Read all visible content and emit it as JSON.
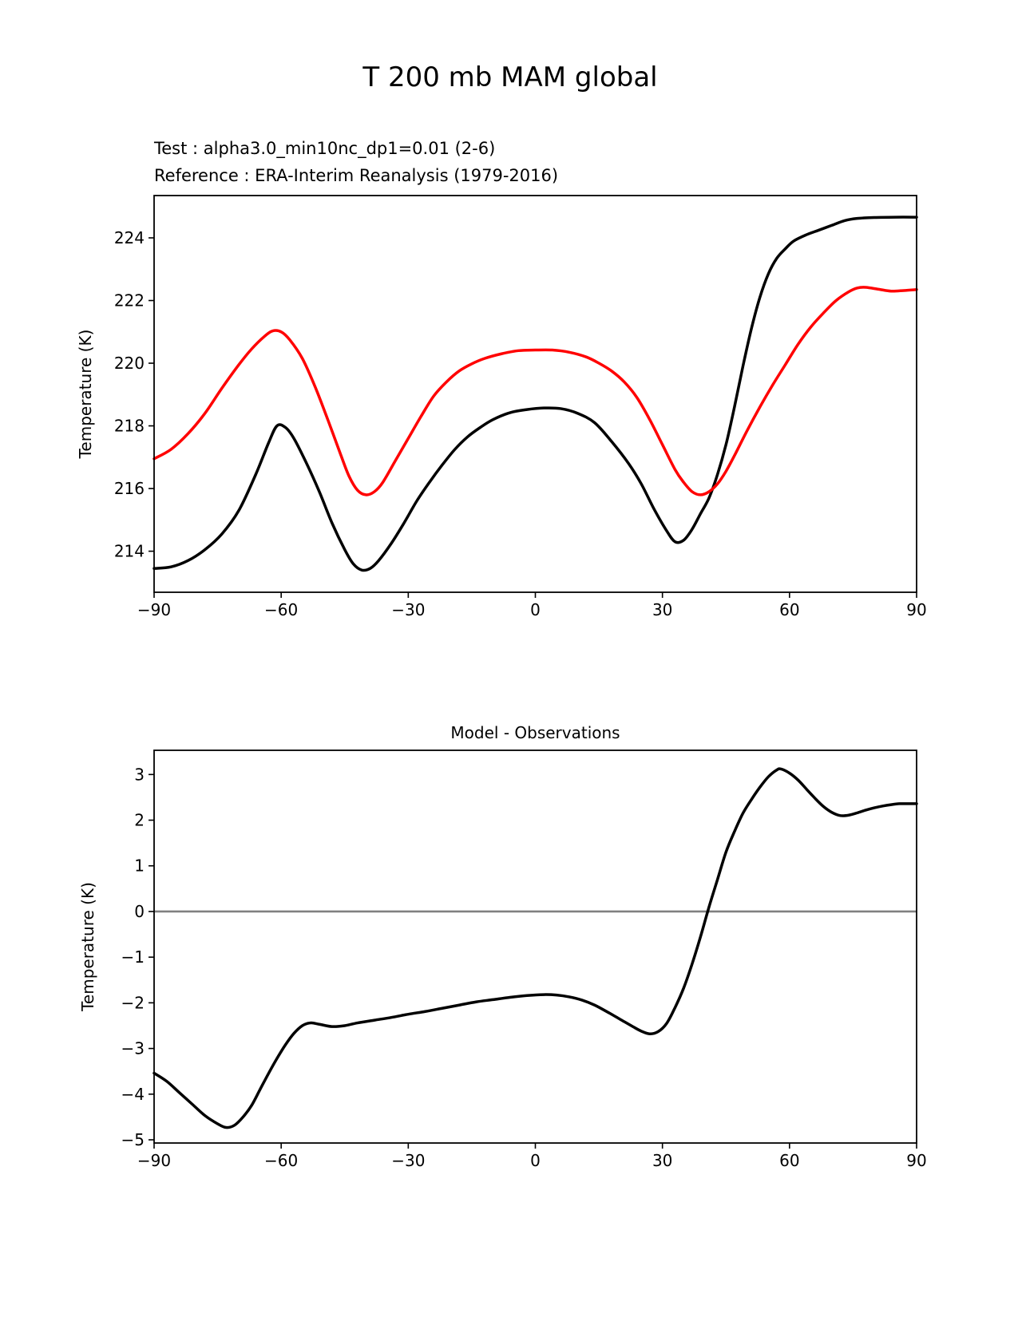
{
  "figure": {
    "background": "#ffffff",
    "title": "T 200 mb MAM global",
    "legend": {
      "test_label": "Test : alpha3.0_min10nc_dp1=0.01 (2-6)",
      "test_color": "#000000",
      "reference_label": "Reference : ERA-Interim Reanalysis (1979-2016)",
      "reference_color": "#ff0000"
    }
  },
  "chart_data": [
    {
      "type": "line",
      "title": "",
      "xlabel": "",
      "ylabel": "Temperature (K)",
      "x_units": "latitude_degrees",
      "xlim": [
        -90,
        90
      ],
      "ylim": [
        212.69,
        225.35
      ],
      "xticks": [
        -90,
        -60,
        -30,
        0,
        30,
        60,
        90
      ],
      "xtick_labels": [
        "−90",
        "−60",
        "−30",
        "0",
        "30",
        "60",
        "90"
      ],
      "yticks": [
        214,
        216,
        218,
        220,
        222,
        224
      ],
      "ytick_labels": [
        "214",
        "216",
        "218",
        "220",
        "222",
        "224"
      ],
      "grid": false,
      "frame_color": "#000000",
      "series": [
        {
          "name": "Test : alpha3.0_min10nc_dp1=0.01 (2-6)",
          "color": "#000000",
          "linewidth": 3.5,
          "points": [
            [
              -90,
              213.45
            ],
            [
              -86,
              213.5
            ],
            [
              -82,
              213.7
            ],
            [
              -78,
              214.05
            ],
            [
              -74,
              214.55
            ],
            [
              -70,
              215.3
            ],
            [
              -66,
              216.45
            ],
            [
              -63,
              217.45
            ],
            [
              -61,
              218.0
            ],
            [
              -59,
              217.95
            ],
            [
              -57,
              217.6
            ],
            [
              -54,
              216.8
            ],
            [
              -51,
              215.9
            ],
            [
              -48,
              214.9
            ],
            [
              -45,
              214.05
            ],
            [
              -43,
              213.6
            ],
            [
              -41,
              213.4
            ],
            [
              -39,
              213.45
            ],
            [
              -37,
              213.7
            ],
            [
              -34,
              214.25
            ],
            [
              -31,
              214.9
            ],
            [
              -28,
              215.6
            ],
            [
              -25,
              216.2
            ],
            [
              -22,
              216.75
            ],
            [
              -19,
              217.25
            ],
            [
              -16,
              217.65
            ],
            [
              -13,
              217.95
            ],
            [
              -10,
              218.2
            ],
            [
              -6,
              218.42
            ],
            [
              -2,
              218.52
            ],
            [
              2,
              218.57
            ],
            [
              6,
              218.55
            ],
            [
              10,
              218.4
            ],
            [
              14,
              218.1
            ],
            [
              18,
              217.5
            ],
            [
              22,
              216.8
            ],
            [
              25,
              216.15
            ],
            [
              28,
              215.35
            ],
            [
              31,
              214.65
            ],
            [
              33,
              214.3
            ],
            [
              35,
              214.35
            ],
            [
              37,
              214.7
            ],
            [
              39,
              215.2
            ],
            [
              41,
              215.7
            ],
            [
              43,
              216.45
            ],
            [
              45,
              217.4
            ],
            [
              47,
              218.6
            ],
            [
              49,
              219.9
            ],
            [
              51,
              221.1
            ],
            [
              53,
              222.1
            ],
            [
              55,
              222.85
            ],
            [
              57,
              223.35
            ],
            [
              59,
              223.65
            ],
            [
              61,
              223.9
            ],
            [
              64,
              224.1
            ],
            [
              67,
              224.25
            ],
            [
              70,
              224.4
            ],
            [
              73,
              224.55
            ],
            [
              76,
              224.62
            ],
            [
              80,
              224.65
            ],
            [
              85,
              224.66
            ],
            [
              90,
              224.66
            ]
          ]
        },
        {
          "name": "Reference : ERA-Interim Reanalysis (1979-2016)",
          "color": "#ff0000",
          "linewidth": 3.5,
          "points": [
            [
              -90,
              216.95
            ],
            [
              -86,
              217.25
            ],
            [
              -82,
              217.75
            ],
            [
              -78,
              218.4
            ],
            [
              -74,
              219.2
            ],
            [
              -70,
              219.95
            ],
            [
              -67,
              220.45
            ],
            [
              -64,
              220.85
            ],
            [
              -62,
              221.03
            ],
            [
              -60,
              221.0
            ],
            [
              -58,
              220.75
            ],
            [
              -55,
              220.15
            ],
            [
              -52,
              219.25
            ],
            [
              -49,
              218.2
            ],
            [
              -46,
              217.1
            ],
            [
              -44,
              216.4
            ],
            [
              -42,
              215.95
            ],
            [
              -40,
              215.8
            ],
            [
              -38,
              215.9
            ],
            [
              -36,
              216.2
            ],
            [
              -33,
              216.9
            ],
            [
              -30,
              217.6
            ],
            [
              -27,
              218.3
            ],
            [
              -24,
              218.95
            ],
            [
              -21,
              219.4
            ],
            [
              -18,
              219.75
            ],
            [
              -15,
              219.98
            ],
            [
              -12,
              220.15
            ],
            [
              -8,
              220.3
            ],
            [
              -4,
              220.4
            ],
            [
              0,
              220.42
            ],
            [
              4,
              220.42
            ],
            [
              8,
              220.35
            ],
            [
              12,
              220.2
            ],
            [
              15,
              220.0
            ],
            [
              18,
              219.75
            ],
            [
              21,
              219.4
            ],
            [
              24,
              218.9
            ],
            [
              27,
              218.2
            ],
            [
              30,
              217.4
            ],
            [
              33,
              216.6
            ],
            [
              35,
              216.2
            ],
            [
              37,
              215.9
            ],
            [
              39,
              215.8
            ],
            [
              41,
              215.9
            ],
            [
              43,
              216.15
            ],
            [
              45,
              216.55
            ],
            [
              47,
              217.05
            ],
            [
              50,
              217.85
            ],
            [
              53,
              218.6
            ],
            [
              56,
              219.3
            ],
            [
              59,
              219.95
            ],
            [
              62,
              220.6
            ],
            [
              65,
              221.15
            ],
            [
              68,
              221.6
            ],
            [
              71,
              222.0
            ],
            [
              74,
              222.28
            ],
            [
              76,
              222.4
            ],
            [
              78,
              222.42
            ],
            [
              81,
              222.36
            ],
            [
              84,
              222.3
            ],
            [
              87,
              222.32
            ],
            [
              90,
              222.35
            ]
          ]
        }
      ]
    },
    {
      "type": "line",
      "title": "Model - Observations",
      "xlabel": "",
      "ylabel": "Temperature (K)",
      "x_units": "latitude_degrees",
      "xlim": [
        -90,
        90
      ],
      "ylim": [
        -5.07,
        3.53
      ],
      "xticks": [
        -90,
        -60,
        -30,
        0,
        30,
        60,
        90
      ],
      "xtick_labels": [
        "−90",
        "−60",
        "−30",
        "0",
        "30",
        "60",
        "90"
      ],
      "yticks": [
        -5,
        -4,
        -3,
        -2,
        -1,
        0,
        1,
        2,
        3
      ],
      "ytick_labels": [
        "−5",
        "−4",
        "−3",
        "−2",
        "−1",
        "0",
        "1",
        "2",
        "3"
      ],
      "grid": false,
      "frame_color": "#000000",
      "zero_line": {
        "y": 0,
        "color": "#808080",
        "linewidth": 2.6
      },
      "series": [
        {
          "name": "Model - Observations",
          "color": "#000000",
          "linewidth": 3.5,
          "points": [
            [
              -90,
              -3.54
            ],
            [
              -87,
              -3.72
            ],
            [
              -84,
              -3.97
            ],
            [
              -81,
              -4.22
            ],
            [
              -78,
              -4.47
            ],
            [
              -75,
              -4.65
            ],
            [
              -73,
              -4.73
            ],
            [
              -71,
              -4.68
            ],
            [
              -69,
              -4.5
            ],
            [
              -67,
              -4.25
            ],
            [
              -65,
              -3.9
            ],
            [
              -63,
              -3.55
            ],
            [
              -61,
              -3.22
            ],
            [
              -59,
              -2.92
            ],
            [
              -57,
              -2.67
            ],
            [
              -55,
              -2.5
            ],
            [
              -53,
              -2.44
            ],
            [
              -51,
              -2.47
            ],
            [
              -48,
              -2.52
            ],
            [
              -45,
              -2.5
            ],
            [
              -42,
              -2.44
            ],
            [
              -38,
              -2.38
            ],
            [
              -34,
              -2.32
            ],
            [
              -30,
              -2.25
            ],
            [
              -26,
              -2.19
            ],
            [
              -22,
              -2.12
            ],
            [
              -18,
              -2.05
            ],
            [
              -14,
              -1.98
            ],
            [
              -10,
              -1.93
            ],
            [
              -6,
              -1.88
            ],
            [
              -2,
              -1.84
            ],
            [
              2,
              -1.82
            ],
            [
              5,
              -1.83
            ],
            [
              8,
              -1.87
            ],
            [
              11,
              -1.94
            ],
            [
              14,
              -2.05
            ],
            [
              17,
              -2.2
            ],
            [
              20,
              -2.36
            ],
            [
              23,
              -2.52
            ],
            [
              25,
              -2.62
            ],
            [
              27,
              -2.68
            ],
            [
              29,
              -2.63
            ],
            [
              31,
              -2.45
            ],
            [
              33,
              -2.1
            ],
            [
              35,
              -1.68
            ],
            [
              37,
              -1.15
            ],
            [
              39,
              -0.55
            ],
            [
              41,
              0.1
            ],
            [
              43,
              0.7
            ],
            [
              45,
              1.3
            ],
            [
              47,
              1.75
            ],
            [
              49,
              2.15
            ],
            [
              51,
              2.45
            ],
            [
              53,
              2.72
            ],
            [
              55,
              2.95
            ],
            [
              57,
              3.1
            ],
            [
              58,
              3.12
            ],
            [
              60,
              3.03
            ],
            [
              62,
              2.88
            ],
            [
              64,
              2.68
            ],
            [
              66,
              2.48
            ],
            [
              68,
              2.3
            ],
            [
              70,
              2.17
            ],
            [
              72,
              2.1
            ],
            [
              74,
              2.11
            ],
            [
              76,
              2.16
            ],
            [
              78,
              2.22
            ],
            [
              80,
              2.27
            ],
            [
              82,
              2.31
            ],
            [
              84,
              2.34
            ],
            [
              86,
              2.36
            ],
            [
              88,
              2.36
            ],
            [
              90,
              2.36
            ]
          ]
        }
      ]
    }
  ]
}
